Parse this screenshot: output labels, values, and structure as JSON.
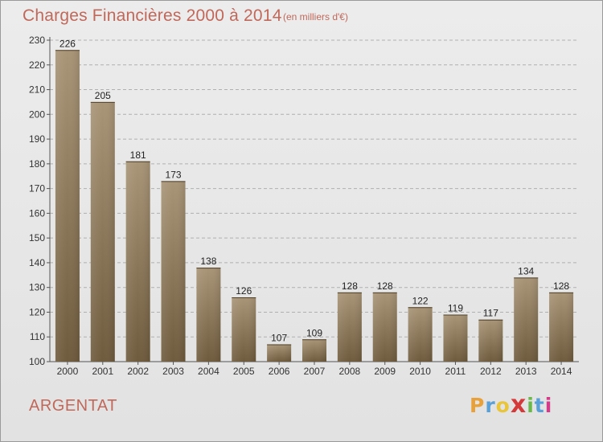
{
  "header": {
    "title": "Charges Financières 2000 à 2014",
    "subtitle": "(en milliers d'€)"
  },
  "footer": {
    "commune": "ARGENTAT",
    "logo": [
      "P",
      "r",
      "o",
      "x",
      "i",
      "t",
      "i"
    ],
    "logo_colors": [
      "#e8a13a",
      "#5aa0d8",
      "#e8c53a",
      "#d43a3a",
      "#6ab84a",
      "#5aa0d8",
      "#d43a8a"
    ]
  },
  "colors": {
    "bar_top": "#a89476",
    "bar_bottom": "#6e5a3c",
    "title": "#c0685a",
    "grid": "#b0b0b0"
  },
  "chart_data": {
    "type": "bar",
    "categories": [
      "2000",
      "2001",
      "2002",
      "2003",
      "2004",
      "2005",
      "2006",
      "2007",
      "2008",
      "2009",
      "2010",
      "2011",
      "2012",
      "2013",
      "2014"
    ],
    "values": [
      226,
      205,
      181,
      173,
      138,
      126,
      107,
      109,
      128,
      128,
      122,
      119,
      117,
      134,
      128
    ],
    "yticks": [
      100,
      110,
      120,
      130,
      140,
      150,
      160,
      170,
      180,
      190,
      200,
      210,
      220,
      230
    ],
    "ylim": [
      100,
      230
    ],
    "grid": true
  }
}
